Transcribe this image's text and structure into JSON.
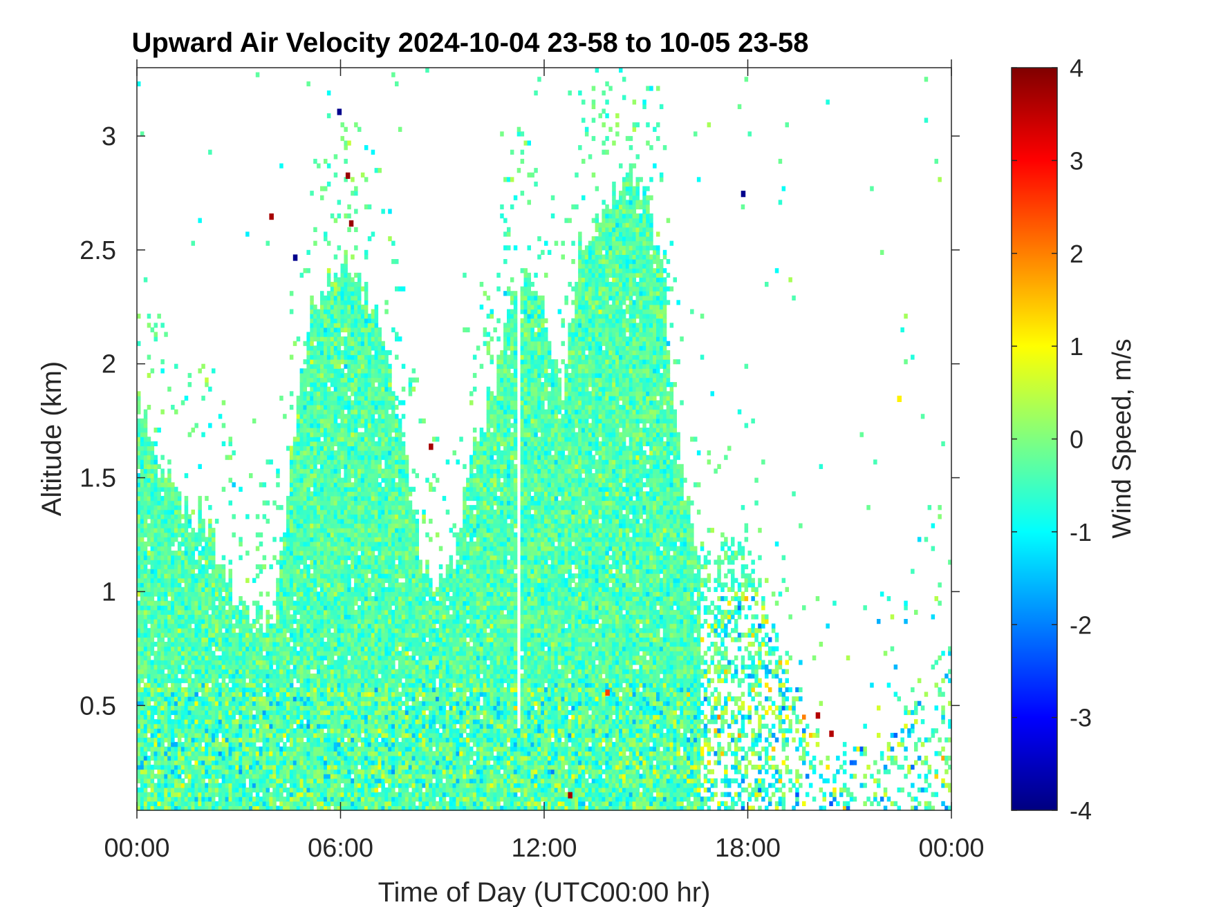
{
  "chart_data": {
    "type": "heatmap",
    "title": "Upward Air Velocity 2024-10-04 23-58 to 10-05 23-58",
    "xlabel": "Time of Day (UTC00:00 hr)",
    "ylabel": "Altitude (km)",
    "x_ticks": [
      "00:00",
      "06:00",
      "12:00",
      "18:00",
      "00:00"
    ],
    "x_tick_hours": [
      0,
      6,
      12,
      18,
      24
    ],
    "y_ticks": [
      "0.5",
      "1",
      "1.5",
      "2",
      "2.5",
      "3"
    ],
    "y_tick_values": [
      0.5,
      1,
      1.5,
      2,
      2.5,
      3
    ],
    "xlim_hours": [
      0,
      24
    ],
    "ylim_km": [
      0.04,
      3.3
    ],
    "colorbar": {
      "label": "Wind Speed, m/s",
      "ticks": [
        "4",
        "3",
        "2",
        "1",
        "0",
        "-1",
        "-2",
        "-3",
        "-4"
      ],
      "tick_values": [
        4,
        3,
        2,
        1,
        0,
        -1,
        -2,
        -3,
        -4
      ],
      "range": [
        -4,
        4
      ],
      "colormap": "jet"
    },
    "cell_size": {
      "hours": 0.1,
      "km": 0.02
    },
    "cloud_top_profile": [
      [
        0,
        1.85
      ],
      [
        1,
        1.4
      ],
      [
        2,
        1.3
      ],
      [
        2.5,
        1.1
      ],
      [
        3,
        0.95
      ],
      [
        4,
        0.85
      ],
      [
        4.5,
        1.6
      ],
      [
        5,
        2.2
      ],
      [
        6,
        2.45
      ],
      [
        7,
        2.2
      ],
      [
        7.5,
        1.9
      ],
      [
        8,
        1.5
      ],
      [
        8.3,
        1.1
      ],
      [
        8.7,
        1.05
      ],
      [
        9.3,
        1.15
      ],
      [
        9.8,
        1.6
      ],
      [
        10.5,
        1.9
      ],
      [
        11,
        2.3
      ],
      [
        11.5,
        2.4
      ],
      [
        12,
        2.2
      ],
      [
        12.5,
        1.9
      ],
      [
        13,
        2.5
      ],
      [
        14,
        2.7
      ],
      [
        14.5,
        2.85
      ],
      [
        15,
        2.75
      ],
      [
        15.5,
        2.3
      ],
      [
        16,
        1.5
      ],
      [
        16.5,
        1.2
      ],
      [
        17,
        1.15
      ],
      [
        17.8,
        1.25
      ],
      [
        18.5,
        0.95
      ],
      [
        19,
        0.7
      ],
      [
        20,
        0.35
      ],
      [
        21,
        0.25
      ],
      [
        22,
        0.3
      ],
      [
        23,
        0.6
      ],
      [
        24,
        0.8
      ]
    ],
    "clear_columns_hours": [
      [
        11.1,
        11.25
      ]
    ],
    "anomalies": [
      {
        "hour": 6.15,
        "km": 2.82,
        "value": 3.8
      },
      {
        "hour": 6.25,
        "km": 2.61,
        "value": 3.8
      },
      {
        "hour": 3.9,
        "km": 2.64,
        "value": 3.7
      },
      {
        "hour": 5.9,
        "km": 3.1,
        "value": -3.9
      },
      {
        "hour": 4.6,
        "km": 2.46,
        "value": -3.9
      },
      {
        "hour": 17.8,
        "km": 2.74,
        "value": -3.9
      },
      {
        "hour": 8.6,
        "km": 1.63,
        "value": 3.7
      },
      {
        "hour": 13.8,
        "km": 0.55,
        "value": 2.5
      },
      {
        "hour": 20.0,
        "km": 0.45,
        "value": 3.6
      },
      {
        "hour": 20.4,
        "km": 0.37,
        "value": 3.6
      },
      {
        "hour": 12.7,
        "km": 0.1,
        "value": 3.7
      },
      {
        "hour": 22.4,
        "km": 1.84,
        "value": 1.1
      }
    ]
  }
}
